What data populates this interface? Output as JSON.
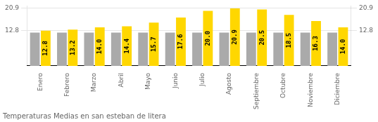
{
  "chart_data": {
    "type": "bar",
    "title": "Temperaturas Medias en san esteban de litera",
    "categories": [
      "Enero",
      "Febrero",
      "Marzo",
      "Abril",
      "Mayo",
      "Junio",
      "Julio",
      "Agosto",
      "Septiembre",
      "Octubre",
      "Noviembre",
      "Diciembre"
    ],
    "series": [
      {
        "color": "#AAAAAA",
        "values": [
          12.1,
          12.1,
          12.1,
          12.1,
          12.1,
          12.1,
          12.1,
          12.1,
          12.1,
          12.1,
          12.1,
          12.1
        ]
      },
      {
        "color": "#FFD700",
        "values": [
          12.8,
          13.2,
          14.0,
          14.4,
          15.7,
          17.6,
          20.0,
          20.9,
          20.5,
          18.5,
          16.3,
          14.0
        ],
        "value_labels": [
          "12.8",
          "13.2",
          "14.0",
          "14.4",
          "15.7",
          "17.6",
          "20.0",
          "20.9",
          "20.5",
          "18.5",
          "16.3",
          "14.0"
        ],
        "data_labels": true
      }
    ],
    "ylim": [
      0,
      21.8
    ],
    "yticks": [
      12.8,
      20.9
    ],
    "y2lim": [
      0,
      21.8
    ],
    "y2ticks": [
      12.8,
      20.9
    ],
    "grid": true
  }
}
